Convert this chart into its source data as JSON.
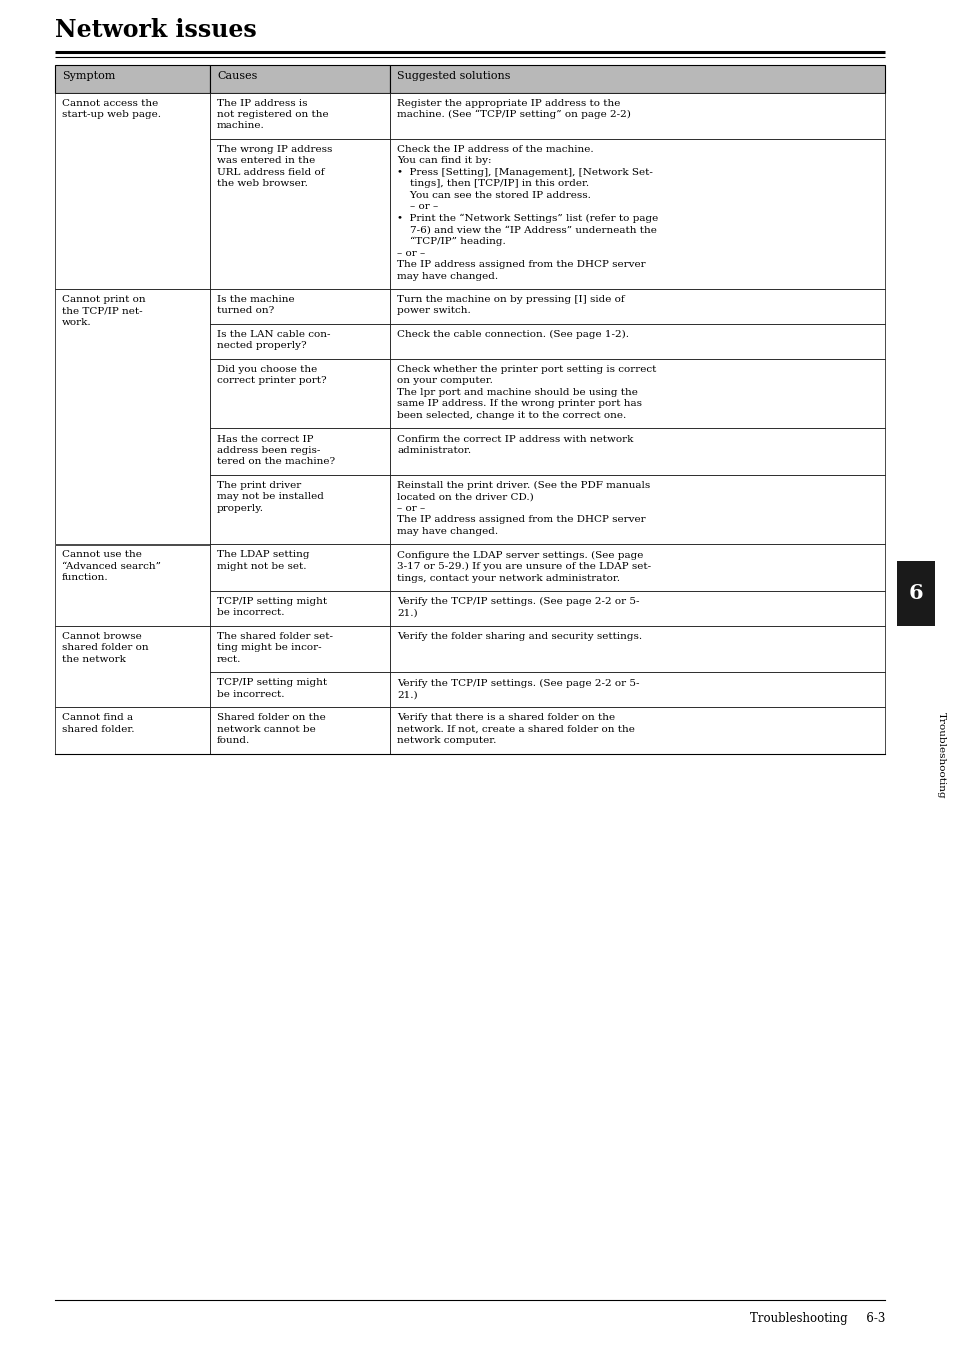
{
  "title": "Network issues",
  "bg_color": "#ffffff",
  "header_bg": "#b8b8b8",
  "header_texts": [
    "Symptom",
    "Causes",
    "Suggested solutions"
  ],
  "font_size": 7.5,
  "header_font_size": 8.0,
  "rows": [
    {
      "symptom": "Cannot access the\nstart-up web page.",
      "causes": [
        "The IP address is\nnot registered on the\nmachine.",
        "The wrong IP address\nwas entered in the\nURL address field of\nthe web browser."
      ],
      "solutions": [
        "Register the appropriate IP address to the\nmachine. (See “TCP/IP setting” on page 2-2)",
        "Check the IP address of the machine.\nYou can find it by:\n•  Press [Setting], [Management], [Network Set-\n    tings], then [TCP/IP] in this order.\n    You can see the stored IP address.\n    – or –\n•  Print the “Network Settings” list (refer to page\n    7-6) and view the “IP Address” underneath the\n    “TCP/IP” heading.\n– or –\nThe IP address assigned from the DHCP server\nmay have changed."
      ]
    },
    {
      "symptom": "Cannot print on\nthe TCP/IP net-\nwork.",
      "causes": [
        "Is the machine\nturned on?",
        "Is the LAN cable con-\nnected properly?",
        "Did you choose the\ncorrect printer port?",
        "Has the correct IP\naddress been regis-\ntered on the machine?",
        "The print driver\nmay not be installed\nproperly."
      ],
      "solutions": [
        "Turn the machine on by pressing [I] side of\npower switch.",
        "Check the cable connection. (See page 1-2).",
        "Check whether the printer port setting is correct\non your computer.\nThe lpr port and machine should be using the\nsame IP address. If the wrong printer port has\nbeen selected, change it to the correct one.",
        "Confirm the correct IP address with network\nadministrator.",
        "Reinstall the print driver. (See the PDF manuals\nlocated on the driver CD.)\n– or –\nThe IP address assigned from the DHCP server\nmay have changed."
      ]
    },
    {
      "symptom": "Cannot use the\n“Advanced search”\nfunction.",
      "causes": [
        "The LDAP setting\nmight not be set.",
        "TCP/IP setting might\nbe incorrect."
      ],
      "solutions": [
        "Configure the LDAP server settings. (See page\n3-17 or 5-29.) If you are unsure of the LDAP set-\ntings, contact your network administrator.",
        "Verify the TCP/IP settings. (See page 2-2 or 5-\n21.)"
      ]
    },
    {
      "symptom": "Cannot browse\nshared folder on\nthe network",
      "causes": [
        "The shared folder set-\nting might be incor-\nrect.",
        "TCP/IP setting might\nbe incorrect."
      ],
      "solutions": [
        "Verify the folder sharing and security settings.",
        "Verify the TCP/IP settings. (See page 2-2 or 5-\n21.)"
      ]
    },
    {
      "symptom": "Cannot find a\nshared folder.",
      "causes": [
        "Shared folder on the\nnetwork cannot be\nfound."
      ],
      "solutions": [
        "Verify that there is a shared folder on the\nnetwork. If not, create a shared folder on the\nnetwork computer."
      ]
    }
  ],
  "side_tab_color": "#1a1a1a",
  "side_tab_text": "Troubleshooting",
  "side_tab_number": "6",
  "footer_text": "Troubleshooting     6-3"
}
